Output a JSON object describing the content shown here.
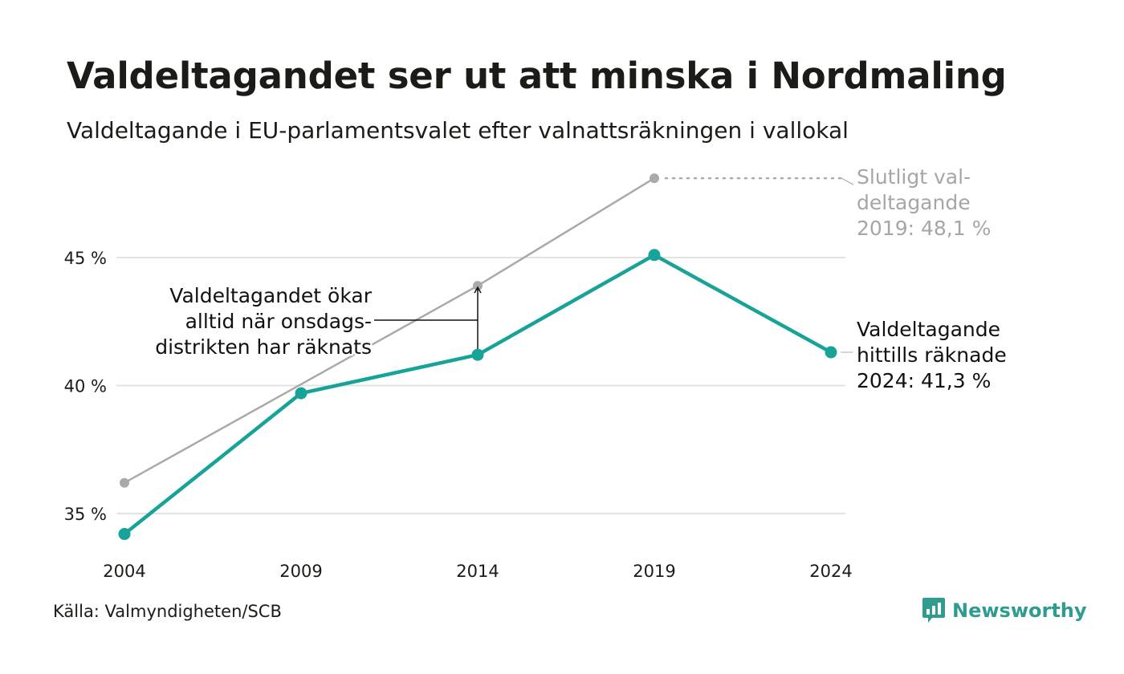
{
  "header": {
    "title": "Valdeltagandet ser ut att minska i Nordmaling",
    "subtitle": "Valdeltagande i EU-parlamentsvalet efter valnattsräkningen i vallokal"
  },
  "footer": {
    "source": "Källa: Valmyndigheten/SCB",
    "brand": "Newsworthy",
    "brand_icon": "bar-chart-logo-icon"
  },
  "colors": {
    "counted": "#17a398",
    "final": "#aaaaaa",
    "grid": "#e3e3e3",
    "text": "#1b1b17",
    "brand": "#2e9d8f"
  },
  "chart_data": {
    "type": "line",
    "x": [
      "2004",
      "2009",
      "2014",
      "2019",
      "2024"
    ],
    "ylim": [
      34,
      48.5
    ],
    "yticks": [
      35,
      40,
      45
    ],
    "ytick_labels": [
      "35 %",
      "40 %",
      "45 %"
    ],
    "grid": true,
    "series": [
      {
        "key": "final",
        "values": [
          36.2,
          null,
          43.9,
          48.1,
          null
        ],
        "color": "#aaaaaa"
      },
      {
        "key": "counted",
        "values": [
          34.2,
          39.7,
          41.2,
          45.1,
          41.3
        ],
        "color": "#17a398"
      }
    ],
    "annotations": {
      "final_label": [
        "Slutligt val-",
        "deltagande",
        "2019: 48,1 %"
      ],
      "counted_label": [
        "Valdeltagande",
        "hittills räknade",
        "2024: 41,3 %"
      ],
      "gap_note": [
        "Valdeltagandet ökar",
        "alltid när onsdags-",
        "distrikten har räknats"
      ]
    }
  }
}
